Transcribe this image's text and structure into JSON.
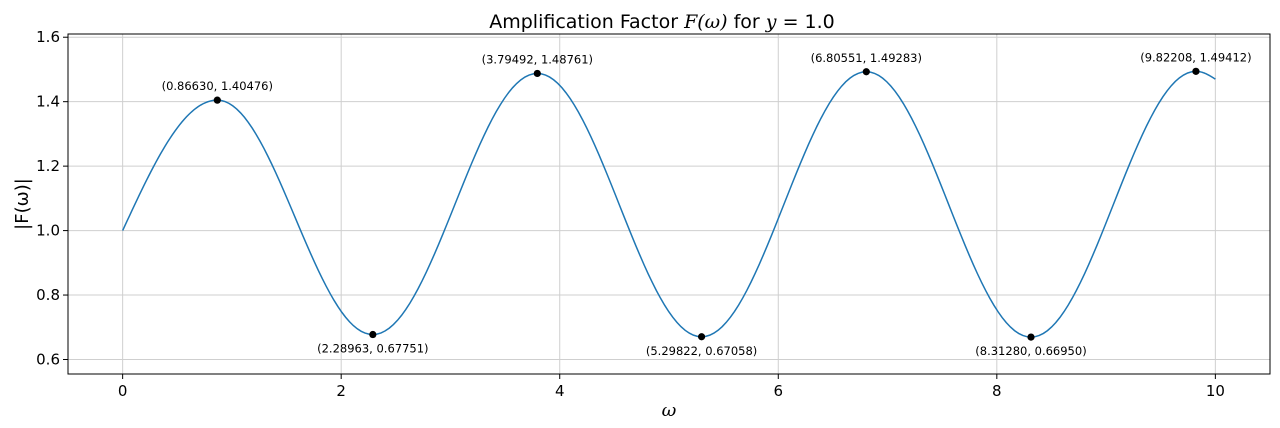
{
  "chart_data": {
    "type": "line",
    "title_prefix": "Amplification Factor ",
    "title_func": "F(ω)",
    "title_mid": " for ",
    "title_var": "y",
    "title_suffix": " = 1.0",
    "xlabel": "ω",
    "ylabel": "|F(ω)|",
    "xlim": [
      -0.5,
      10.5
    ],
    "ylim": [
      0.555,
      1.61
    ],
    "xticks": [
      0,
      2,
      4,
      6,
      8,
      10
    ],
    "xtick_labels": [
      "0",
      "2",
      "4",
      "6",
      "8",
      "10"
    ],
    "yticks": [
      0.6,
      0.8,
      1.0,
      1.2,
      1.4,
      1.6
    ],
    "ytick_labels": [
      "0.6",
      "0.8",
      "1.0",
      "1.2",
      "1.4",
      "1.6"
    ],
    "grid": true,
    "line_color": "#1f77b4",
    "marker_color": "#000000",
    "series": [
      {
        "x": [
          0,
          0.8663,
          2.28963,
          3.79492,
          5.29822,
          6.80551,
          8.3128,
          9.82208,
          10.0
        ],
        "y": [
          1.0,
          1.40476,
          0.67751,
          1.48761,
          0.67058,
          1.49283,
          0.6695,
          1.49412,
          1.47
        ]
      }
    ],
    "extrema": [
      {
        "x": 0.8663,
        "y": 1.40476,
        "label": "(0.86630, 1.40476)",
        "position": "above"
      },
      {
        "x": 2.28963,
        "y": 0.67751,
        "label": "(2.28963, 0.67751)",
        "position": "below"
      },
      {
        "x": 3.79492,
        "y": 1.48761,
        "label": "(3.79492, 1.48761)",
        "position": "above"
      },
      {
        "x": 5.29822,
        "y": 0.67058,
        "label": "(5.29822, 0.67058)",
        "position": "below"
      },
      {
        "x": 6.80551,
        "y": 1.49283,
        "label": "(6.80551, 1.49283)",
        "position": "above"
      },
      {
        "x": 8.3128,
        "y": 0.6695,
        "label": "(8.31280, 0.66950)",
        "position": "below"
      },
      {
        "x": 9.82208,
        "y": 1.49412,
        "label": "(9.82208, 1.49412)",
        "position": "above"
      }
    ]
  }
}
